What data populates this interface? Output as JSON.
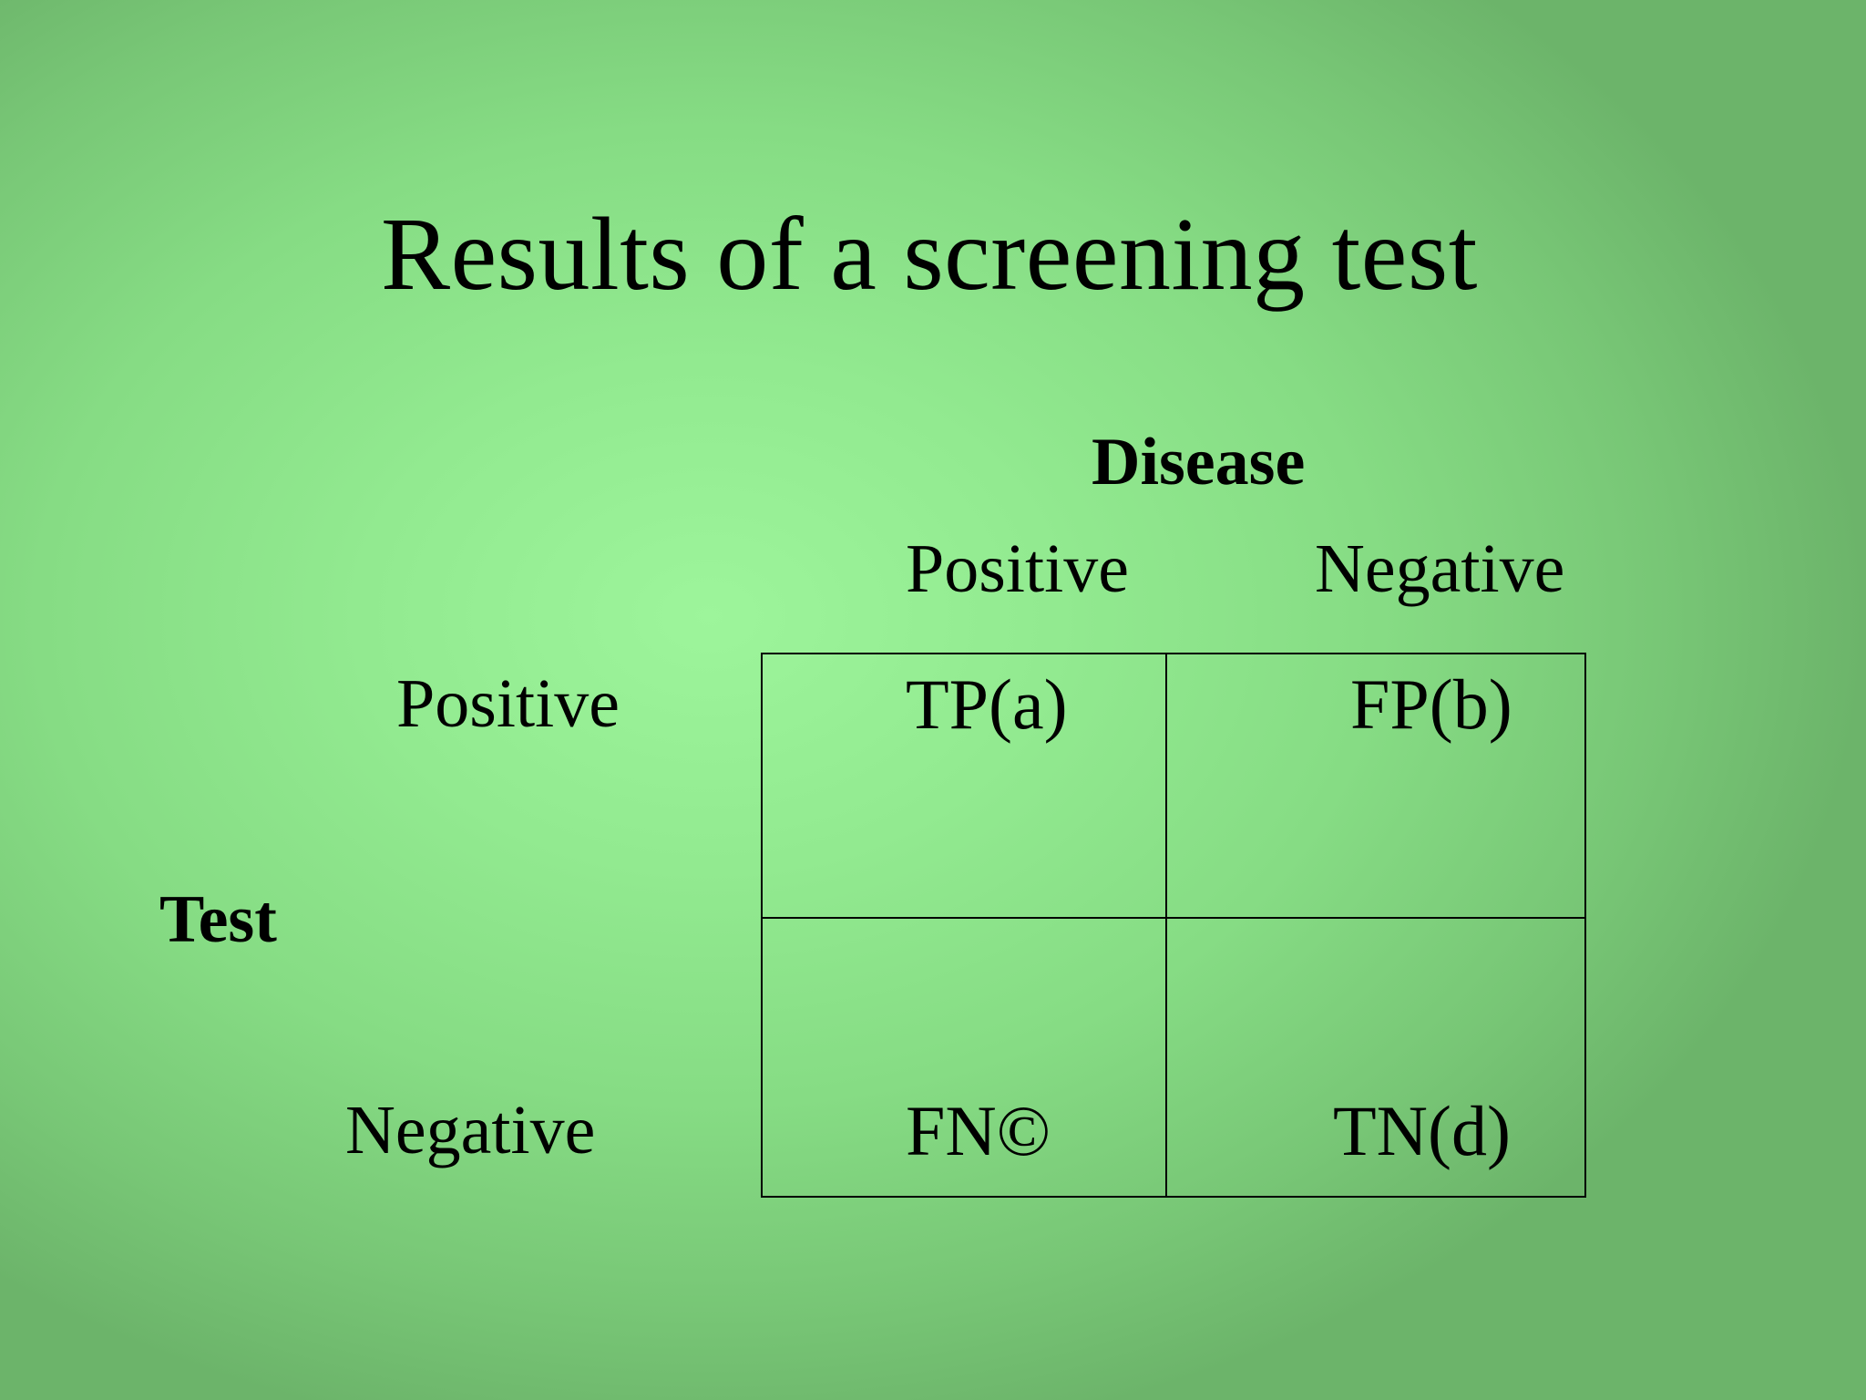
{
  "slide": {
    "title": "Results of a screening test",
    "disease_label": "Disease",
    "test_label": "Test",
    "columns": {
      "positive": "Positive",
      "negative": "Negative"
    },
    "rows": {
      "positive": "Positive",
      "negative": "Negative"
    },
    "cells": {
      "tp": "TP(a)",
      "fp": "FP(b)",
      "fn": "FN©",
      "tn": "TN(d)"
    }
  },
  "colors": {
    "background_center": "#9df59b",
    "background_edge": "#6cb46a",
    "text": "#000000",
    "grid_line": "#000000"
  }
}
